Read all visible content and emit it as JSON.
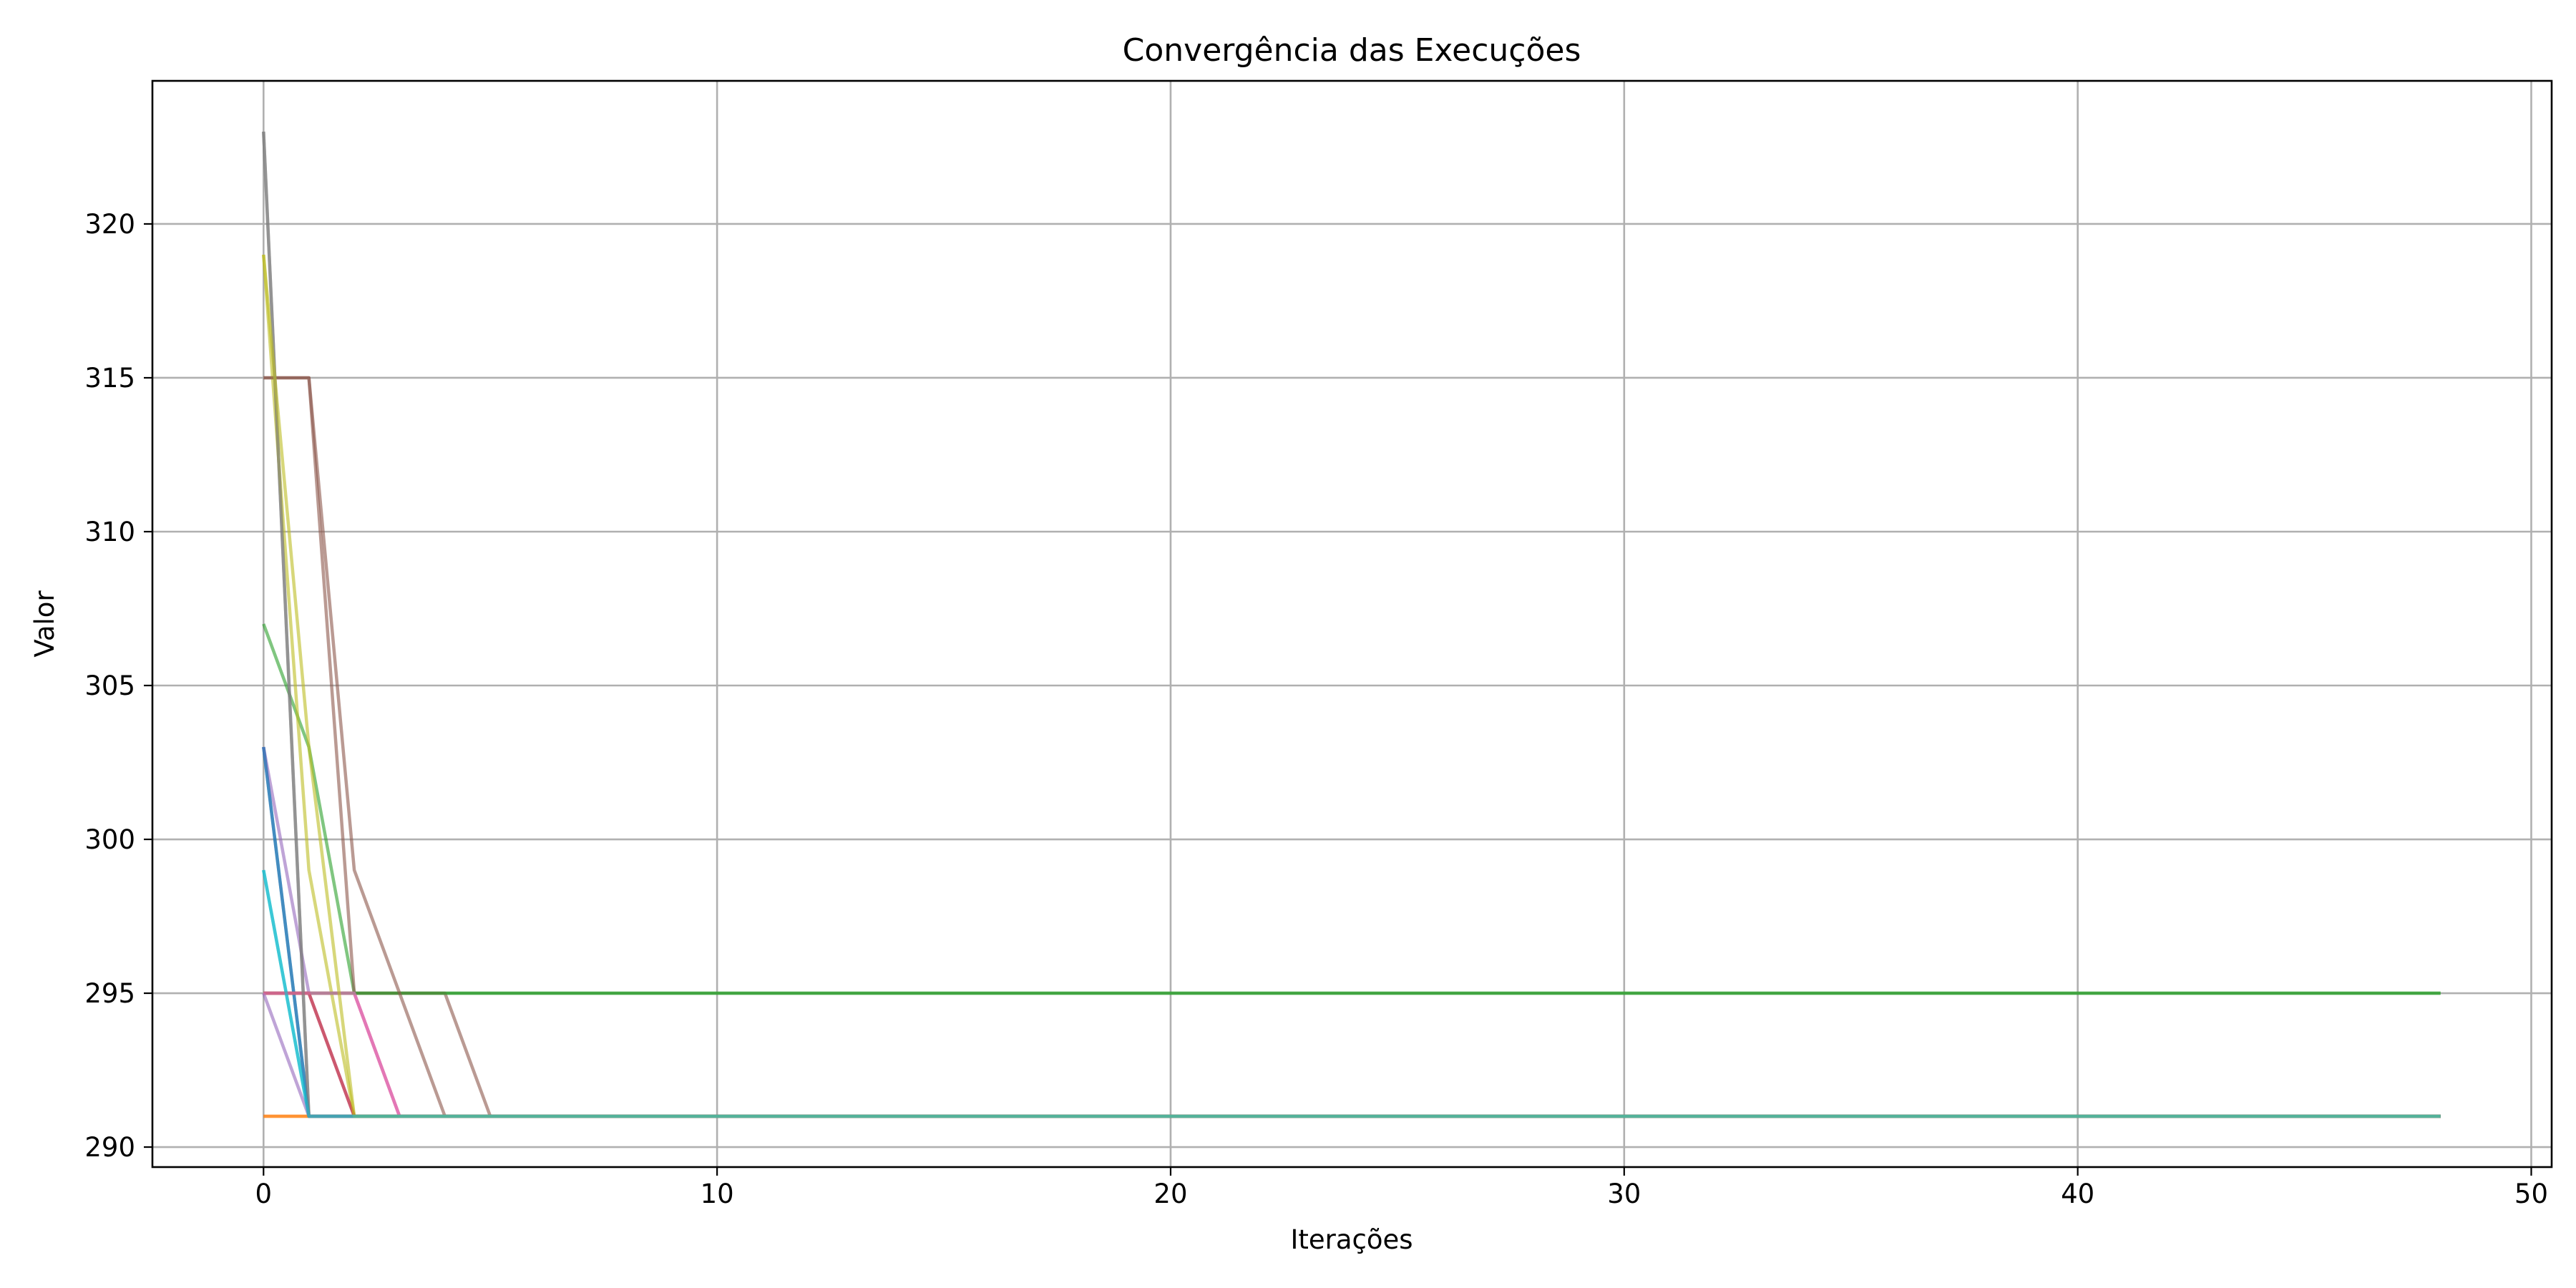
{
  "chart_data": {
    "type": "line",
    "title": "Convergência das Execuções",
    "xlabel": "Iterações",
    "ylabel": "Valor",
    "xlim": [
      -2.45,
      50.45
    ],
    "ylim": [
      289.35,
      324.65
    ],
    "xticks": [
      0,
      10,
      20,
      30,
      40,
      50
    ],
    "yticks": [
      290,
      295,
      300,
      305,
      310,
      315,
      320
    ],
    "grid": true,
    "legend": "none",
    "x_max_iteration": 48,
    "series": [
      {
        "color": "#1f77b4",
        "opacity": 0.6,
        "values": [
          303,
          291
        ]
      },
      {
        "color": "#ff7f0e",
        "opacity": 0.6,
        "values": [
          291,
          291
        ]
      },
      {
        "color": "#2ca02c",
        "opacity": 0.6,
        "values": [
          307,
          303,
          295
        ]
      },
      {
        "color": "#d62728",
        "opacity": 0.6,
        "values": [
          295,
          295,
          295,
          291
        ]
      },
      {
        "color": "#9467bd",
        "opacity": 0.6,
        "values": [
          303,
          295,
          291
        ]
      },
      {
        "color": "#8c564b",
        "opacity": 0.6,
        "values": [
          315,
          315,
          295,
          295,
          295,
          291
        ]
      },
      {
        "color": "#e377c2",
        "opacity": 0.6,
        "values": [
          295,
          295,
          295,
          291
        ]
      },
      {
        "color": "#7f7f7f",
        "opacity": 0.6,
        "values": [
          323,
          291
        ]
      },
      {
        "color": "#bcbd22",
        "opacity": 0.6,
        "values": [
          319,
          299,
          291
        ]
      },
      {
        "color": "#17becf",
        "opacity": 0.6,
        "values": [
          299,
          291
        ]
      },
      {
        "color": "#1f77b4",
        "opacity": 0.6,
        "values": [
          303,
          291
        ]
      },
      {
        "color": "#ff7f0e",
        "opacity": 0.6,
        "values": [
          291,
          291
        ]
      },
      {
        "color": "#2ca02c",
        "opacity": 0.6,
        "values": [
          295,
          295
        ]
      },
      {
        "color": "#d62728",
        "opacity": 0.6,
        "values": [
          295,
          295,
          291
        ]
      },
      {
        "color": "#9467bd",
        "opacity": 0.6,
        "values": [
          295,
          291
        ]
      },
      {
        "color": "#8c564b",
        "opacity": 0.6,
        "values": [
          315,
          315,
          299,
          295,
          291
        ]
      },
      {
        "color": "#e377c2",
        "opacity": 0.6,
        "values": [
          295,
          295,
          295,
          291
        ]
      },
      {
        "color": "#7f7f7f",
        "opacity": 0.6,
        "values": [
          323,
          291
        ]
      },
      {
        "color": "#bcbd22",
        "opacity": 0.6,
        "values": [
          319,
          303,
          291
        ]
      },
      {
        "color": "#17becf",
        "opacity": 0.6,
        "values": [
          299,
          291
        ]
      }
    ]
  }
}
